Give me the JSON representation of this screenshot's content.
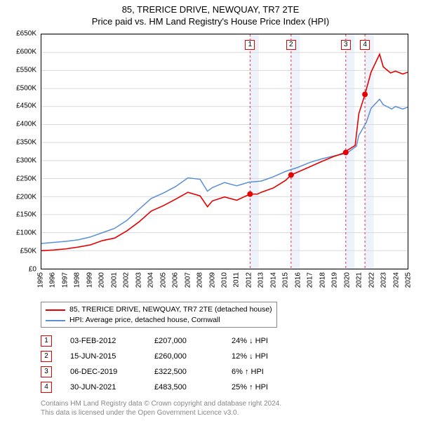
{
  "title": {
    "line1": "85, TRERICE DRIVE, NEWQUAY, TR7 2TE",
    "line2": "Price paid vs. HM Land Registry's House Price Index (HPI)",
    "fontsize": 13
  },
  "chart": {
    "type": "line",
    "background_color": "#ffffff",
    "border_color": "#000000",
    "grid_color": "#d9d9d9",
    "x": {
      "min": 1995,
      "max": 2025,
      "tick_step": 1,
      "labels": [
        "1995",
        "1996",
        "1997",
        "1998",
        "1999",
        "2000",
        "2001",
        "2002",
        "2003",
        "2004",
        "2005",
        "2006",
        "2007",
        "2008",
        "2009",
        "2010",
        "2011",
        "2012",
        "2013",
        "2014",
        "2015",
        "2016",
        "2017",
        "2018",
        "2019",
        "2020",
        "2021",
        "2022",
        "2023",
        "2024",
        "2025"
      ],
      "label_fontsize": 10
    },
    "y": {
      "min": 0,
      "max": 650000,
      "tick_step": 50000,
      "labels": [
        "£0",
        "£50K",
        "£100K",
        "£150K",
        "£200K",
        "£250K",
        "£300K",
        "£350K",
        "£400K",
        "£450K",
        "£500K",
        "£550K",
        "£600K",
        "£650K"
      ],
      "label_fontsize": 10
    },
    "event_band_color": "#eef3fb",
    "event_line_color": "#e03050",
    "event_badge_border": "#e60000",
    "marker_color": "#e60000",
    "marker_radius": 4,
    "series": [
      {
        "id": "property",
        "label": "85, TRERICE DRIVE, NEWQUAY, TR7 2TE (detached house)",
        "color": "#e60000",
        "line_width": 1.6,
        "points": [
          [
            1995,
            50000
          ],
          [
            1996,
            52000
          ],
          [
            1997,
            55000
          ],
          [
            1998,
            60000
          ],
          [
            1999,
            66000
          ],
          [
            2000,
            78000
          ],
          [
            2001,
            85000
          ],
          [
            2002,
            105000
          ],
          [
            2003,
            130000
          ],
          [
            2004,
            160000
          ],
          [
            2005,
            175000
          ],
          [
            2006,
            193000
          ],
          [
            2007,
            212000
          ],
          [
            2008,
            202000
          ],
          [
            2008.6,
            172000
          ],
          [
            2009,
            188000
          ],
          [
            2010,
            199000
          ],
          [
            2011,
            190000
          ],
          [
            2012.09,
            207000
          ],
          [
            2012.7,
            207000
          ],
          [
            2013,
            212000
          ],
          [
            2014,
            224000
          ],
          [
            2015,
            245000
          ],
          [
            2015.45,
            260000
          ],
          [
            2016,
            268000
          ],
          [
            2017,
            283000
          ],
          [
            2018,
            298000
          ],
          [
            2019,
            312000
          ],
          [
            2019.93,
            322500
          ],
          [
            2020,
            327000
          ],
          [
            2020.7,
            342000
          ],
          [
            2021,
            430000
          ],
          [
            2021.5,
            483500
          ],
          [
            2022,
            545000
          ],
          [
            2022.7,
            595000
          ],
          [
            2023,
            560000
          ],
          [
            2023.6,
            543000
          ],
          [
            2024,
            548000
          ],
          [
            2024.6,
            540000
          ],
          [
            2025,
            545000
          ]
        ]
      },
      {
        "id": "hpi",
        "label": "HPI: Average price, detached house, Cornwall",
        "color": "#5b8fd6",
        "line_width": 1.5,
        "points": [
          [
            1995,
            70000
          ],
          [
            1996,
            73000
          ],
          [
            1997,
            76000
          ],
          [
            1998,
            80000
          ],
          [
            1999,
            88000
          ],
          [
            2000,
            100000
          ],
          [
            2001,
            112000
          ],
          [
            2002,
            134000
          ],
          [
            2003,
            165000
          ],
          [
            2004,
            195000
          ],
          [
            2005,
            210000
          ],
          [
            2006,
            228000
          ],
          [
            2007,
            252000
          ],
          [
            2008,
            248000
          ],
          [
            2008.6,
            215000
          ],
          [
            2009,
            225000
          ],
          [
            2010,
            239000
          ],
          [
            2011,
            230000
          ],
          [
            2012,
            240000
          ],
          [
            2013,
            243000
          ],
          [
            2014,
            255000
          ],
          [
            2015,
            270000
          ],
          [
            2016,
            281000
          ],
          [
            2017,
            295000
          ],
          [
            2018,
            305000
          ],
          [
            2019,
            313000
          ],
          [
            2020,
            320000
          ],
          [
            2020.8,
            340000
          ],
          [
            2021,
            370000
          ],
          [
            2021.6,
            405000
          ],
          [
            2022,
            445000
          ],
          [
            2022.7,
            470000
          ],
          [
            2023,
            455000
          ],
          [
            2023.7,
            443000
          ],
          [
            2024,
            450000
          ],
          [
            2024.6,
            443000
          ],
          [
            2025,
            448000
          ]
        ]
      }
    ],
    "event_markers": [
      {
        "n": "1",
        "x": 2012.09,
        "y": 207000
      },
      {
        "n": "2",
        "x": 2015.45,
        "y": 260000
      },
      {
        "n": "3",
        "x": 2019.93,
        "y": 322500
      },
      {
        "n": "4",
        "x": 2021.5,
        "y": 483500
      }
    ],
    "badge_y_value": 620000
  },
  "legend": {
    "border_color": "#888888",
    "fontsize": 10.5,
    "rows": [
      {
        "color": "#e60000",
        "label": "85, TRERICE DRIVE, NEWQUAY, TR7 2TE (detached house)"
      },
      {
        "color": "#5b8fd6",
        "label": "HPI: Average price, detached house, Cornwall"
      }
    ]
  },
  "events_table": {
    "badge_border": "#e60000",
    "fontsize": 11,
    "hpi_label": "HPI",
    "rows": [
      {
        "n": "1",
        "date": "03-FEB-2012",
        "price": "£207,000",
        "delta": "24%",
        "dir": "down"
      },
      {
        "n": "2",
        "date": "15-JUN-2015",
        "price": "£260,000",
        "delta": "12%",
        "dir": "down"
      },
      {
        "n": "3",
        "date": "06-DEC-2019",
        "price": "£322,500",
        "delta": "6%",
        "dir": "up"
      },
      {
        "n": "4",
        "date": "30-JUN-2021",
        "price": "£483,500",
        "delta": "25%",
        "dir": "up"
      }
    ]
  },
  "attribution": {
    "line1": "Contains HM Land Registry data © Crown copyright and database right 2024.",
    "line2": "This data is licensed under the Open Government Licence v3.0.",
    "color": "#888888",
    "fontsize": 10
  }
}
